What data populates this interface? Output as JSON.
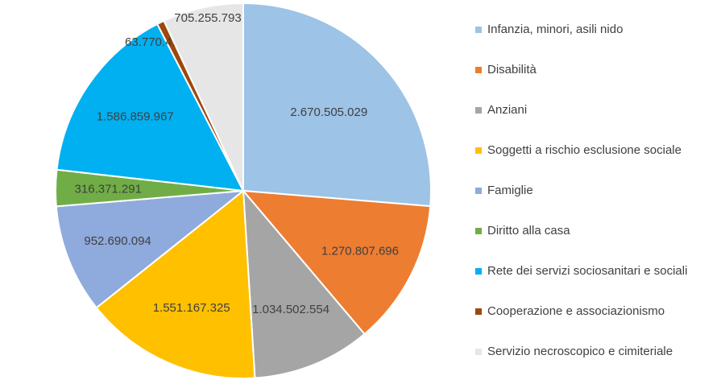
{
  "chart_data": {
    "type": "pie",
    "start_angle": "top",
    "direction": "clockwise",
    "legend_position": "right",
    "slices": [
      {
        "label": "Infanzia, minori, asili nido",
        "value": 2670505029,
        "value_label": "2.670.505.029",
        "color": "#9DC3E6"
      },
      {
        "label": "Disabilità",
        "value": 1270807696,
        "value_label": "1.270.807.696",
        "color": "#ED7D31"
      },
      {
        "label": "Anziani",
        "value": 1034502554,
        "value_label": "1.034.502.554",
        "color": "#A5A5A5"
      },
      {
        "label": "Soggetti a rischio esclusione sociale",
        "value": 1551167325,
        "value_label": "1.551.167.325",
        "color": "#FFC000"
      },
      {
        "label": "Famiglie",
        "value": 952690094,
        "value_label": "952.690.094",
        "color": "#8FAADC"
      },
      {
        "label": "Diritto alla casa",
        "value": 316371291,
        "value_label": "316.371.291",
        "color": "#70AD47"
      },
      {
        "label": "Rete dei servizi sociosanitari e sociali",
        "value": 1586859967,
        "value_label": "1.586.859.967",
        "color": "#00B0F0"
      },
      {
        "label": "Cooperazione e associazionismo",
        "value": 63770411,
        "value_label": "63.770.411",
        "color": "#9E480E"
      },
      {
        "label": "Servizio necroscopico e cimiteriale",
        "value": 705255793,
        "value_label": "705.255.793",
        "color": "#E7E6E6"
      }
    ]
  }
}
